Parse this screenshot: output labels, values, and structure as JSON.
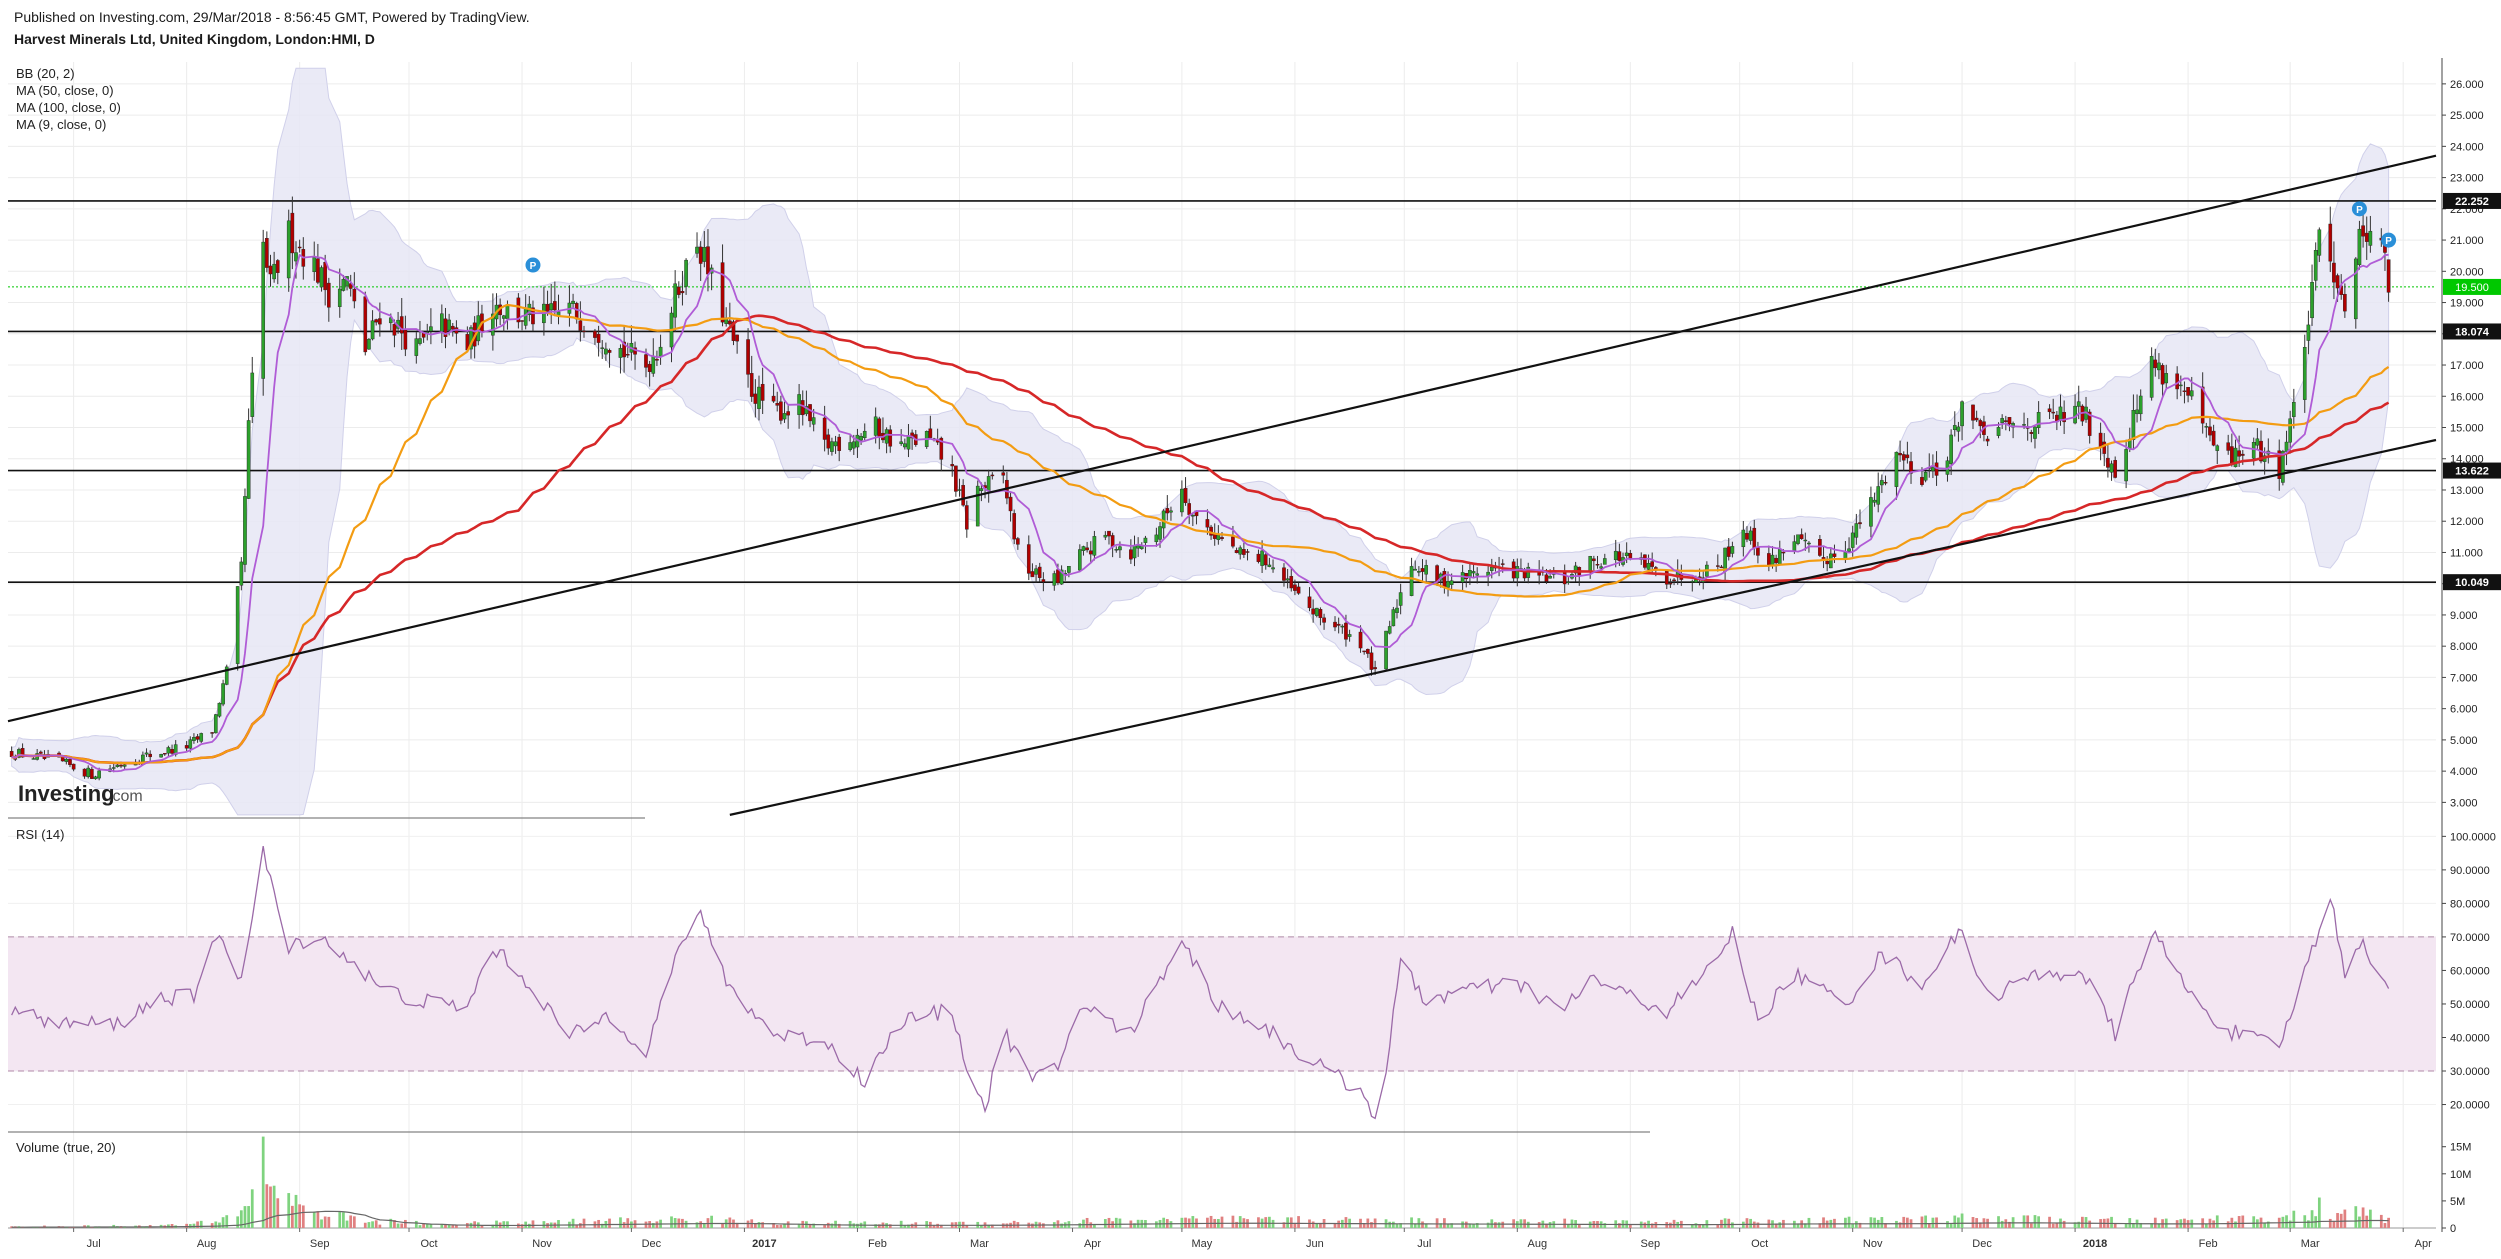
{
  "header": {
    "published": "Published on Investing.com, 29/Mar/2018 - 8:56:45 GMT, Powered by TradingView.",
    "symbol": "Harvest Minerals Ltd, United Kingdom, London:HMI, D"
  },
  "watermark": "Investing.com",
  "colors": {
    "up": "#2ca02c",
    "down": "#b00000",
    "ma50": "#f39c12",
    "ma100": "#d62728",
    "ma9": "#b05cd6",
    "bb_fill": "#e6e6f5",
    "rsi": "#9b6aa8",
    "rsi_band": "#f3e6f2",
    "last_price": "#00c800"
  },
  "x_labels": [
    "Jul",
    "Aug",
    "Sep",
    "Oct",
    "Nov",
    "Dec",
    "2017",
    "Feb",
    "Mar",
    "Apr",
    "May",
    "Jun",
    "Jul",
    "Aug",
    "Sep",
    "Oct",
    "Nov",
    "Dec",
    "2018",
    "Feb",
    "Mar",
    "Apr"
  ],
  "chart_data": [
    {
      "type": "candlestick",
      "pane": "price",
      "title": "Harvest Minerals Ltd, United Kingdom, London:HMI, D",
      "indicators": [
        "BB (20, 2)",
        "MA (50, close, 0)",
        "MA (100, close, 0)",
        "MA (9, close, 0)"
      ],
      "y_ticks": [
        "26.000",
        "25.000",
        "24.000",
        "23.000",
        "22.000",
        "21.000",
        "20.000",
        "19.000",
        "18.000",
        "17.000",
        "16.000",
        "15.000",
        "14.000",
        "13.000",
        "12.000",
        "11.000",
        "10.000",
        "9.000",
        "8.000",
        "7.000",
        "6.000",
        "5.000",
        "4.000",
        "3.000"
      ],
      "ylim": [
        2.5,
        26.7
      ],
      "xlim": [
        "2016-06-13",
        "2018-04-10"
      ],
      "price_path": [
        [
          "2016-06-14",
          4.6
        ],
        [
          "2016-06-27",
          4.3
        ],
        [
          "2016-07-06",
          3.9
        ],
        [
          "2016-07-18",
          4.4
        ],
        [
          "2016-07-25",
          4.6
        ],
        [
          "2016-08-01",
          4.8
        ],
        [
          "2016-08-08",
          5.3
        ],
        [
          "2016-08-12",
          7.2
        ],
        [
          "2016-08-16",
          10.5
        ],
        [
          "2016-08-18",
          15.0
        ],
        [
          "2016-08-22",
          20.8
        ],
        [
          "2016-08-24",
          19.5
        ],
        [
          "2016-08-29",
          21.2
        ],
        [
          "2016-09-05",
          20.2
        ],
        [
          "2016-09-09",
          19.3
        ],
        [
          "2016-09-14",
          19.7
        ],
        [
          "2016-09-19",
          17.5
        ],
        [
          "2016-09-23",
          18.7
        ],
        [
          "2016-09-28",
          18.2
        ],
        [
          "2016-10-03",
          17.5
        ],
        [
          "2016-10-10",
          18.3
        ],
        [
          "2016-10-17",
          17.6
        ],
        [
          "2016-10-24",
          19.0
        ],
        [
          "2016-10-31",
          18.6
        ],
        [
          "2016-11-07",
          18.5
        ],
        [
          "2016-11-14",
          18.8
        ],
        [
          "2016-11-21",
          18.2
        ],
        [
          "2016-11-28",
          17.5
        ],
        [
          "2016-12-05",
          17.0
        ],
        [
          "2016-12-08",
          17.5
        ],
        [
          "2016-12-14",
          19.5
        ],
        [
          "2016-12-19",
          21.0
        ],
        [
          "2016-12-22",
          20.0
        ],
        [
          "2016-12-28",
          18.0
        ],
        [
          "2017-01-03",
          16.2
        ],
        [
          "2017-01-09",
          15.5
        ],
        [
          "2017-01-16",
          15.7
        ],
        [
          "2017-01-23",
          14.4
        ],
        [
          "2017-01-30",
          14.7
        ],
        [
          "2017-02-06",
          15.0
        ],
        [
          "2017-02-13",
          14.4
        ],
        [
          "2017-02-20",
          14.7
        ],
        [
          "2017-02-27",
          13.6
        ],
        [
          "2017-03-03",
          11.9
        ],
        [
          "2017-03-06",
          13.0
        ],
        [
          "2017-03-13",
          13.4
        ],
        [
          "2017-03-17",
          11.0
        ],
        [
          "2017-03-21",
          10.3
        ],
        [
          "2017-03-28",
          10.1
        ],
        [
          "2017-04-03",
          10.9
        ],
        [
          "2017-04-10",
          11.5
        ],
        [
          "2017-04-17",
          11.0
        ],
        [
          "2017-04-24",
          11.7
        ],
        [
          "2017-05-01",
          13.1
        ],
        [
          "2017-05-04",
          12.2
        ],
        [
          "2017-05-10",
          11.6
        ],
        [
          "2017-05-17",
          10.9
        ],
        [
          "2017-05-24",
          10.8
        ],
        [
          "2017-05-31",
          9.8
        ],
        [
          "2017-06-07",
          9.0
        ],
        [
          "2017-06-14",
          8.5
        ],
        [
          "2017-06-19",
          8.1
        ],
        [
          "2017-06-23",
          7.1
        ],
        [
          "2017-06-26",
          8.3
        ],
        [
          "2017-06-30",
          9.7
        ],
        [
          "2017-07-03",
          10.7
        ],
        [
          "2017-07-10",
          10.1
        ],
        [
          "2017-07-17",
          10.2
        ],
        [
          "2017-07-24",
          10.5
        ],
        [
          "2017-07-31",
          10.4
        ],
        [
          "2017-08-07",
          10.2
        ],
        [
          "2017-08-14",
          10.1
        ],
        [
          "2017-08-21",
          10.7
        ],
        [
          "2017-08-28",
          10.9
        ],
        [
          "2017-09-04",
          10.6
        ],
        [
          "2017-09-11",
          10.2
        ],
        [
          "2017-09-18",
          10.3
        ],
        [
          "2017-09-25",
          10.6
        ],
        [
          "2017-10-02",
          11.8
        ],
        [
          "2017-10-09",
          10.6
        ],
        [
          "2017-10-16",
          11.5
        ],
        [
          "2017-10-23",
          10.7
        ],
        [
          "2017-10-30",
          11.2
        ],
        [
          "2017-11-06",
          12.5
        ],
        [
          "2017-11-13",
          14.2
        ],
        [
          "2017-11-20",
          13.5
        ],
        [
          "2017-11-27",
          14.0
        ],
        [
          "2017-12-01",
          15.8
        ],
        [
          "2017-12-06",
          14.7
        ],
        [
          "2017-12-13",
          15.0
        ],
        [
          "2017-12-20",
          15.1
        ],
        [
          "2018-01-03",
          15.5
        ],
        [
          "2018-01-08",
          14.5
        ],
        [
          "2018-01-12",
          13.6
        ],
        [
          "2018-01-17",
          15.3
        ],
        [
          "2018-01-22",
          17.1
        ],
        [
          "2018-01-29",
          16.4
        ],
        [
          "2018-02-02",
          15.8
        ],
        [
          "2018-02-07",
          14.5
        ],
        [
          "2018-02-12",
          14.0
        ],
        [
          "2018-02-19",
          14.4
        ],
        [
          "2018-02-26",
          13.7
        ],
        [
          "2018-03-02",
          15.6
        ],
        [
          "2018-03-07",
          19.2
        ],
        [
          "2018-03-09",
          21.2
        ],
        [
          "2018-03-13",
          20.1
        ],
        [
          "2018-03-16",
          19.0
        ],
        [
          "2018-03-20",
          21.0
        ],
        [
          "2018-03-23",
          21.6
        ],
        [
          "2018-03-26",
          20.9
        ],
        [
          "2018-03-28",
          19.5
        ]
      ],
      "horizontal_lines": [
        {
          "value": 22.252,
          "label": "22.252"
        },
        {
          "value": 18.074,
          "label": "18.074"
        },
        {
          "value": 13.622,
          "label": "13.622"
        },
        {
          "value": 10.049,
          "label": "10.049"
        }
      ],
      "last_price": {
        "value": 19.5,
        "label": "19.500"
      },
      "trendlines": [
        {
          "name": "upper channel",
          "points": [
            [
              "2016-06-13",
              5.6
            ],
            [
              "2018-04-10",
              23.7
            ]
          ]
        },
        {
          "name": "lower channel",
          "points": [
            [
              "2016-12-28",
              2.6
            ],
            [
              "2018-04-10",
              14.6
            ]
          ]
        }
      ],
      "markers": [
        {
          "date": "2016-11-04",
          "value": 20.2,
          "text": "P"
        },
        {
          "date": "2018-03-20",
          "value": 22.0,
          "text": "P"
        },
        {
          "date": "2018-03-28",
          "value": 21.0,
          "text": "P"
        }
      ]
    },
    {
      "type": "line",
      "pane": "rsi",
      "title": "RSI (14)",
      "y_ticks": [
        "100.0000",
        "90.0000",
        "80.0000",
        "70.0000",
        "60.0000",
        "50.0000",
        "40.0000",
        "30.0000",
        "20.0000"
      ],
      "ylim": [
        13,
        101
      ],
      "band": [
        30,
        70
      ],
      "series": [
        {
          "name": "RSI (14)",
          "points": [
            [
              "2016-06-14",
              48
            ],
            [
              "2016-06-27",
              44
            ],
            [
              "2016-07-13",
              44
            ],
            [
              "2016-07-25",
              52
            ],
            [
              "2016-08-03",
              52
            ],
            [
              "2016-08-10",
              72
            ],
            [
              "2016-08-16",
              57
            ],
            [
              "2016-08-22",
              95
            ],
            [
              "2016-08-29",
              66
            ],
            [
              "2016-09-05",
              71
            ],
            [
              "2016-09-14",
              64
            ],
            [
              "2016-09-23",
              55
            ],
            [
              "2016-10-03",
              51
            ],
            [
              "2016-10-17",
              49
            ],
            [
              "2016-10-24",
              67
            ],
            [
              "2016-11-03",
              56
            ],
            [
              "2016-11-14",
              40
            ],
            [
              "2016-11-25",
              47
            ],
            [
              "2016-12-05",
              36
            ],
            [
              "2016-12-14",
              66
            ],
            [
              "2016-12-19",
              78
            ],
            [
              "2016-12-28",
              55
            ],
            [
              "2017-01-09",
              41
            ],
            [
              "2017-01-23",
              39
            ],
            [
              "2017-02-03",
              27
            ],
            [
              "2017-02-13",
              45
            ],
            [
              "2017-02-27",
              48
            ],
            [
              "2017-03-03",
              32
            ],
            [
              "2017-03-08",
              18
            ],
            [
              "2017-03-13",
              42
            ],
            [
              "2017-03-21",
              27
            ],
            [
              "2017-03-28",
              31
            ],
            [
              "2017-04-03",
              50
            ],
            [
              "2017-04-17",
              41
            ],
            [
              "2017-05-01",
              70
            ],
            [
              "2017-05-10",
              50
            ],
            [
              "2017-05-24",
              43
            ],
            [
              "2017-05-31",
              37
            ],
            [
              "2017-06-07",
              32
            ],
            [
              "2017-06-19",
              24
            ],
            [
              "2017-06-23",
              17
            ],
            [
              "2017-06-26",
              30
            ],
            [
              "2017-06-30",
              62
            ],
            [
              "2017-07-07",
              51
            ],
            [
              "2017-07-17",
              54
            ],
            [
              "2017-08-01",
              56
            ],
            [
              "2017-08-14",
              48
            ],
            [
              "2017-08-21",
              58
            ],
            [
              "2017-08-28",
              54
            ],
            [
              "2017-09-11",
              48
            ],
            [
              "2017-09-21",
              58
            ],
            [
              "2017-09-29",
              71
            ],
            [
              "2017-10-06",
              45
            ],
            [
              "2017-10-16",
              59
            ],
            [
              "2017-10-30",
              50
            ],
            [
              "2017-11-09",
              65
            ],
            [
              "2017-11-20",
              56
            ],
            [
              "2017-12-01",
              72
            ],
            [
              "2017-12-08",
              52
            ],
            [
              "2017-12-20",
              58
            ],
            [
              "2018-01-03",
              60
            ],
            [
              "2018-01-12",
              41
            ],
            [
              "2018-01-22",
              72
            ],
            [
              "2018-02-02",
              52
            ],
            [
              "2018-02-12",
              42
            ],
            [
              "2018-02-26",
              37
            ],
            [
              "2018-03-07",
              66
            ],
            [
              "2018-03-12",
              82
            ],
            [
              "2018-03-16",
              60
            ],
            [
              "2018-03-20",
              69
            ],
            [
              "2018-03-23",
              64
            ],
            [
              "2018-03-28",
              53
            ]
          ]
        }
      ]
    },
    {
      "type": "bar",
      "pane": "volume",
      "title": "Volume (true, 20)",
      "y_ticks": [
        "15M",
        "10M",
        "5M",
        "0"
      ],
      "ylim": [
        0,
        15.5
      ],
      "y_unit": "M",
      "peaks": [
        [
          "2016-06-14",
          0.3
        ],
        [
          "2016-07-25",
          0.5
        ],
        [
          "2016-08-10",
          1.2
        ],
        [
          "2016-08-16",
          4.0
        ],
        [
          "2016-08-18",
          6.0
        ],
        [
          "2016-08-22",
          14.0
        ],
        [
          "2016-08-25",
          9.0
        ],
        [
          "2016-08-29",
          6.0
        ],
        [
          "2016-09-07",
          3.0
        ],
        [
          "2016-09-19",
          1.5
        ],
        [
          "2016-10-10",
          0.8
        ],
        [
          "2016-12-19",
          1.8
        ],
        [
          "2017-01-16",
          1.0
        ],
        [
          "2017-03-06",
          1.0
        ],
        [
          "2017-05-01",
          1.8
        ],
        [
          "2017-06-26",
          1.5
        ],
        [
          "2017-09-11",
          1.2
        ],
        [
          "2017-10-02",
          1.5
        ],
        [
          "2017-11-13",
          1.6
        ],
        [
          "2017-12-01",
          2.0
        ],
        [
          "2018-01-22",
          1.4
        ],
        [
          "2018-03-07",
          2.5
        ],
        [
          "2018-03-09",
          5.0
        ],
        [
          "2018-03-13",
          2.0
        ],
        [
          "2018-03-20",
          3.5
        ],
        [
          "2018-03-28",
          1.5
        ]
      ]
    }
  ]
}
